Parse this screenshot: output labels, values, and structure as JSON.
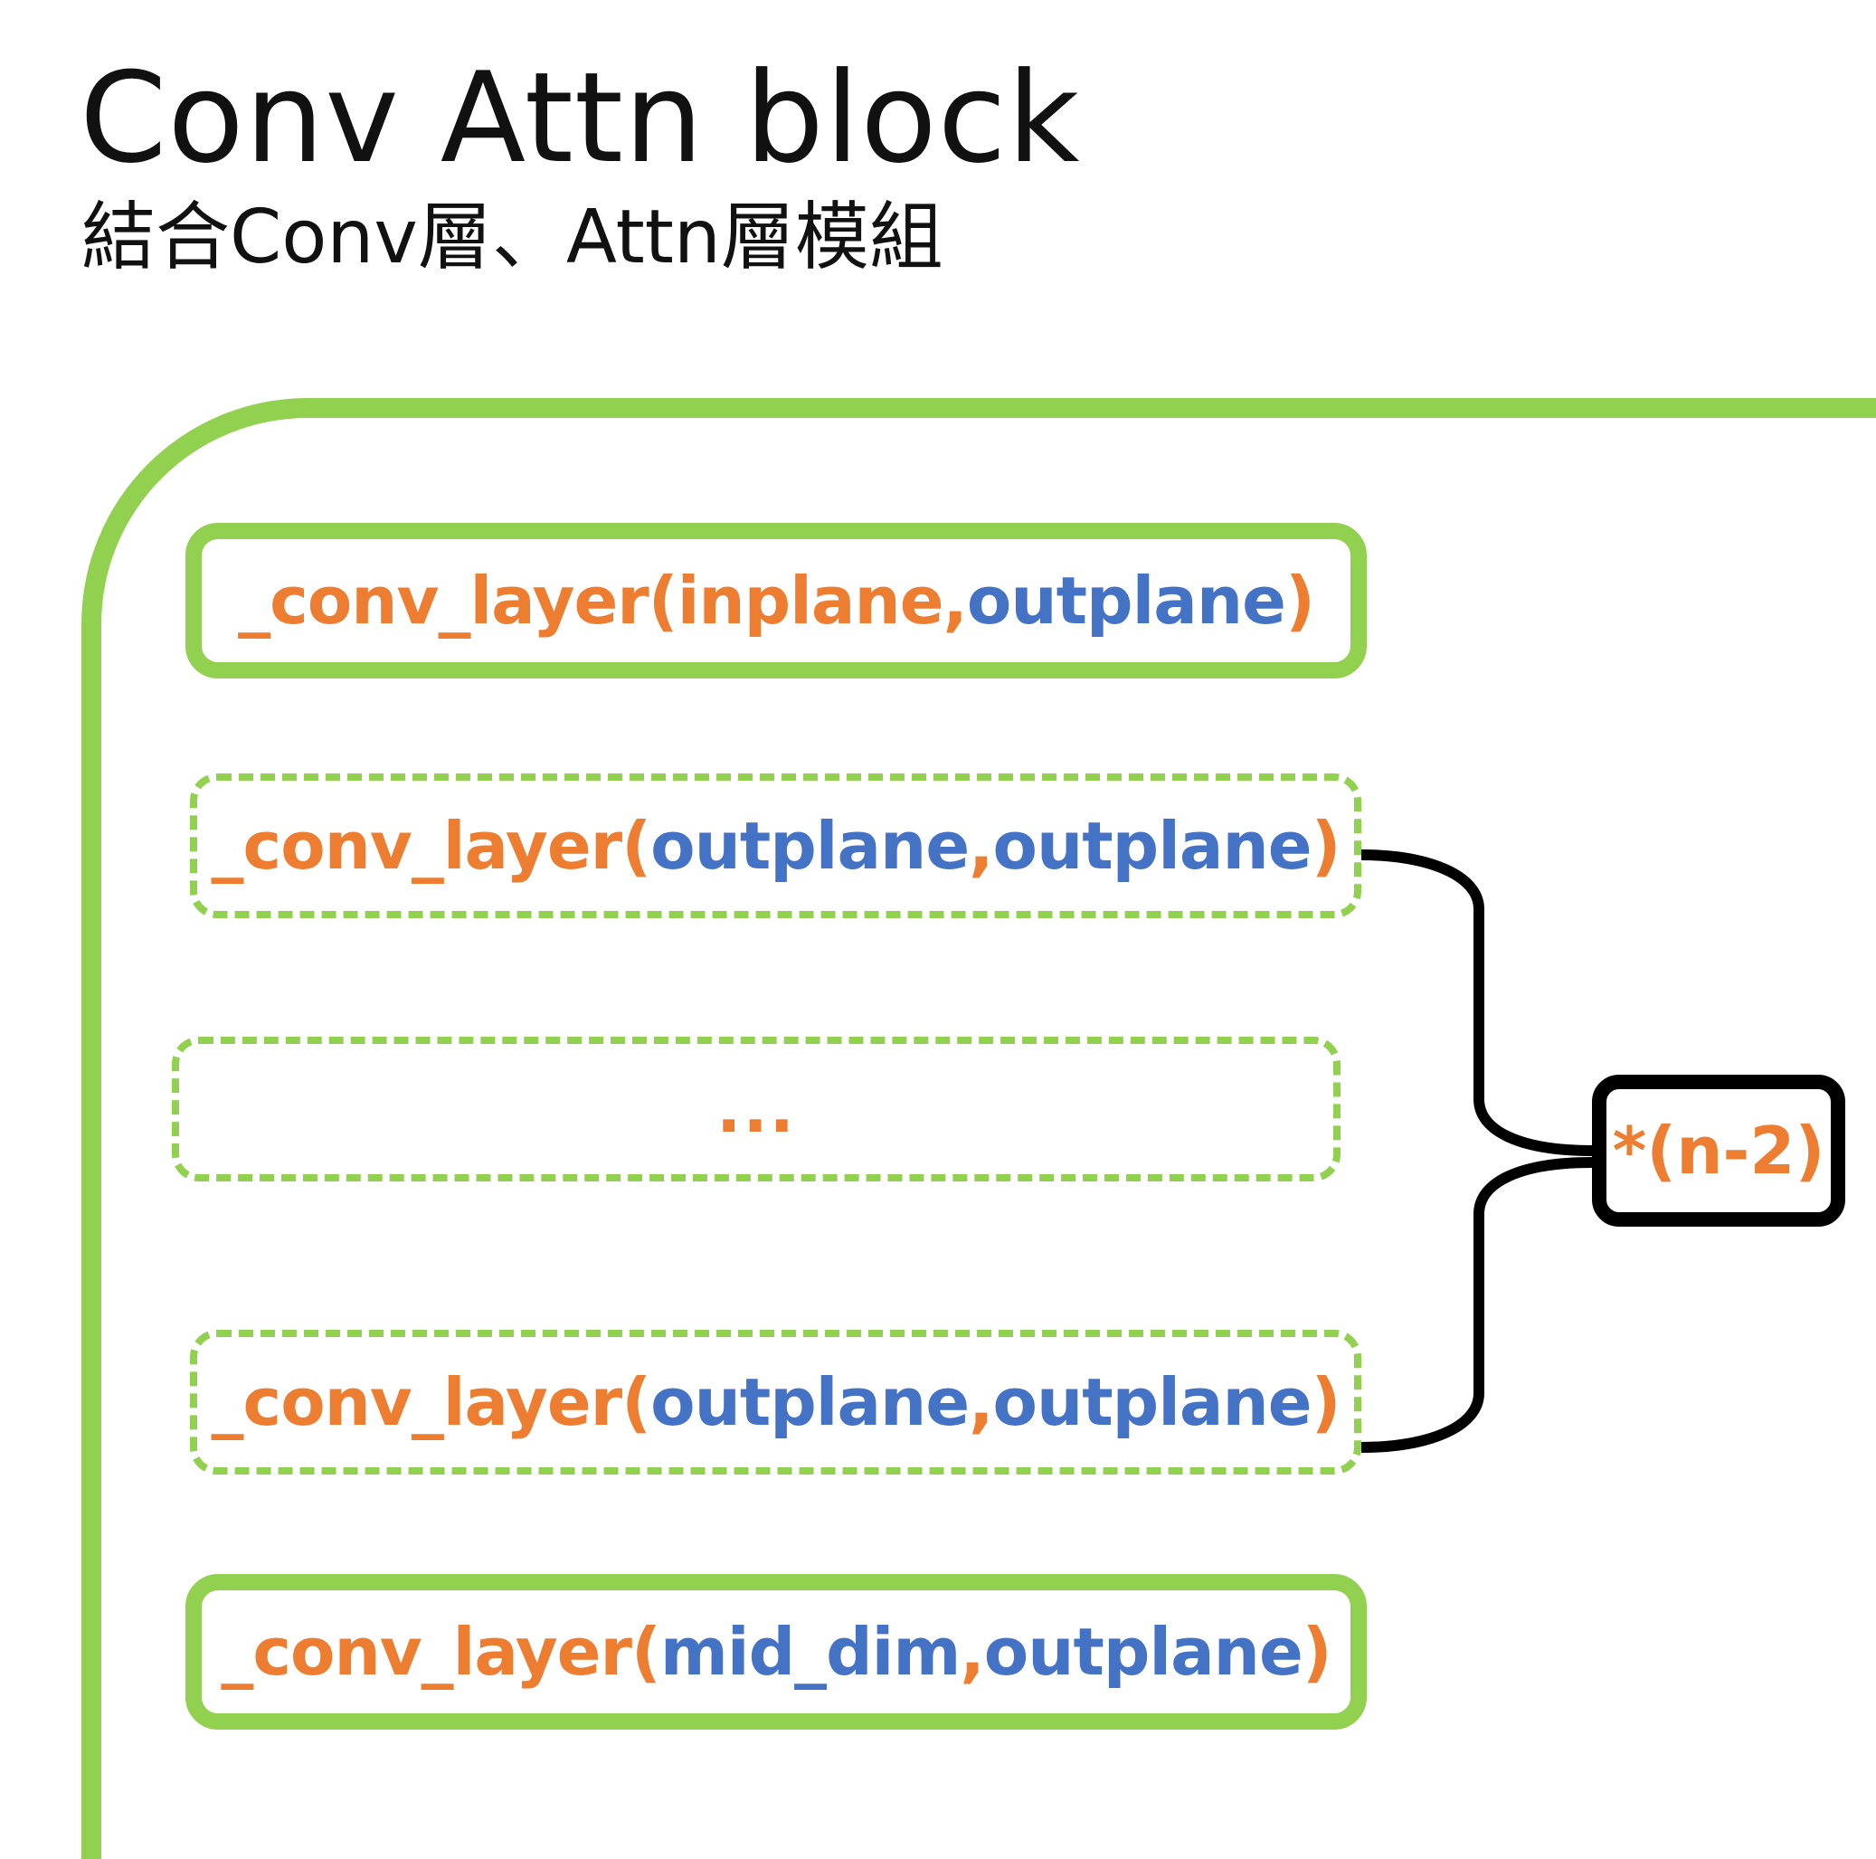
{
  "title": "Conv Attn block",
  "subtitle": "結合Conv層、Attn層模組",
  "colors": {
    "accent_green": "#92d050",
    "keyword_orange": "#ed7d31",
    "arg_blue": "#4472c4",
    "bracket_black": "#000000"
  },
  "layers": [
    {
      "fn": "_conv_layer(",
      "arg1": "inplane",
      "sep": ", ",
      "arg2": "outplane",
      "close": ")"
    },
    {
      "fn": "_conv_layer(",
      "arg1": "outplane",
      "sep": ", ",
      "arg2": "outplane",
      "close": ")"
    },
    {
      "ellipsis": "..."
    },
    {
      "fn": "_conv_layer(",
      "arg1": "outplane",
      "sep": ", ",
      "arg2": "outplane",
      "close": ")"
    },
    {
      "fn": "_conv_layer(",
      "arg1": "mid_dim",
      "sep": ", ",
      "arg2": "outplane",
      "close": ")"
    }
  ],
  "repeat_label": "*(n-2)"
}
